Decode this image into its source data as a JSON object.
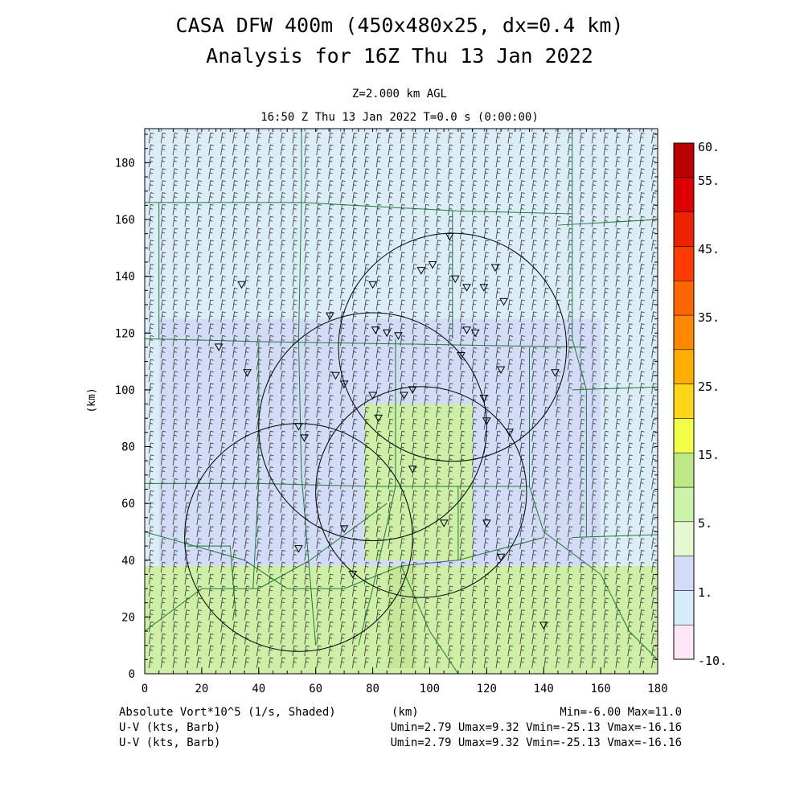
{
  "titles": {
    "line1": "CASA DFW 400m (450x480x25, dx=0.4 km)",
    "line2": "Analysis for 16Z Thu 13 Jan 2022",
    "level": "Z=2.000 km AGL",
    "time": "16:50 Z Thu 13 Jan 2022    T=0.0 s (0:00:00)"
  },
  "footer": {
    "field_label": "Absolute Vort*10^5 (1/s, Shaded)",
    "xunit": "(km)",
    "minmax": "Min=-6.00 Max=11.0",
    "uv1_label": "U-V (kts, Barb)",
    "uv1_stats": "Umin=2.79 Umax=9.32 Vmin=-25.13 Vmax=-16.16",
    "uv2_label": "U-V (kts, Barb)",
    "uv2_stats": "Umin=2.79 Umax=9.32 Vmin=-25.13 Vmax=-16.16"
  },
  "colors": {
    "barb": "#444444",
    "county_lines": "#1f7a3a",
    "radar_rings": "#000000"
  },
  "chart_data": {
    "type": "heatmap",
    "xlabel": "",
    "ylabel": "(km)",
    "xlim": [
      0,
      180
    ],
    "ylim": [
      0,
      192
    ],
    "x_ticks": [
      0,
      20,
      40,
      60,
      80,
      100,
      120,
      140,
      160,
      180
    ],
    "y_ticks": [
      0,
      20,
      40,
      60,
      80,
      100,
      120,
      140,
      160,
      180
    ],
    "colorbar": {
      "labels": [
        "60.",
        "55.",
        "45.",
        "35.",
        "25.",
        "15.",
        "5.",
        "1.",
        "-10."
      ],
      "bins": [
        "#fde6f6",
        "#d6ecfa",
        "#d2dcf6",
        "#e6f8d2",
        "#cdf2aa",
        "#bde885",
        "#f2fd48",
        "#ffd617",
        "#ffae00",
        "#ff8800",
        "#ff6600",
        "#ff3c00",
        "#ee2200",
        "#dd0000",
        "#bb0000"
      ]
    },
    "shaded_regions": [
      {
        "value_bin": "low",
        "color": "#dbeef8",
        "x": [
          0,
          180
        ],
        "y": [
          38,
          192
        ]
      },
      {
        "value_bin": "near-zero",
        "color": "#d2dcf6",
        "x": [
          5,
          160
        ],
        "y": [
          38,
          125
        ]
      },
      {
        "value_bin": "positive",
        "color": "#cdf0a6",
        "x": [
          0,
          180
        ],
        "y": [
          0,
          38
        ]
      },
      {
        "value_bin": "positive",
        "color": "#cdf0a6",
        "x": [
          77,
          115
        ],
        "y": [
          40,
          95
        ]
      },
      {
        "value_bin": "strong-positive",
        "color": "#c4e896",
        "x": [
          85,
          95
        ],
        "y": [
          2,
          38
        ]
      }
    ],
    "radar_rings": [
      {
        "cx": 108,
        "cy": 115,
        "r": 40
      },
      {
        "cx": 80,
        "cy": 87,
        "r": 40
      },
      {
        "cx": 97,
        "cy": 64,
        "r": 37
      },
      {
        "cx": 54,
        "cy": 48,
        "r": 40
      }
    ],
    "barb_grid": {
      "u_range": [
        2.79,
        9.32
      ],
      "v_range": [
        -25.13,
        -16.16
      ],
      "units": "kts"
    }
  }
}
